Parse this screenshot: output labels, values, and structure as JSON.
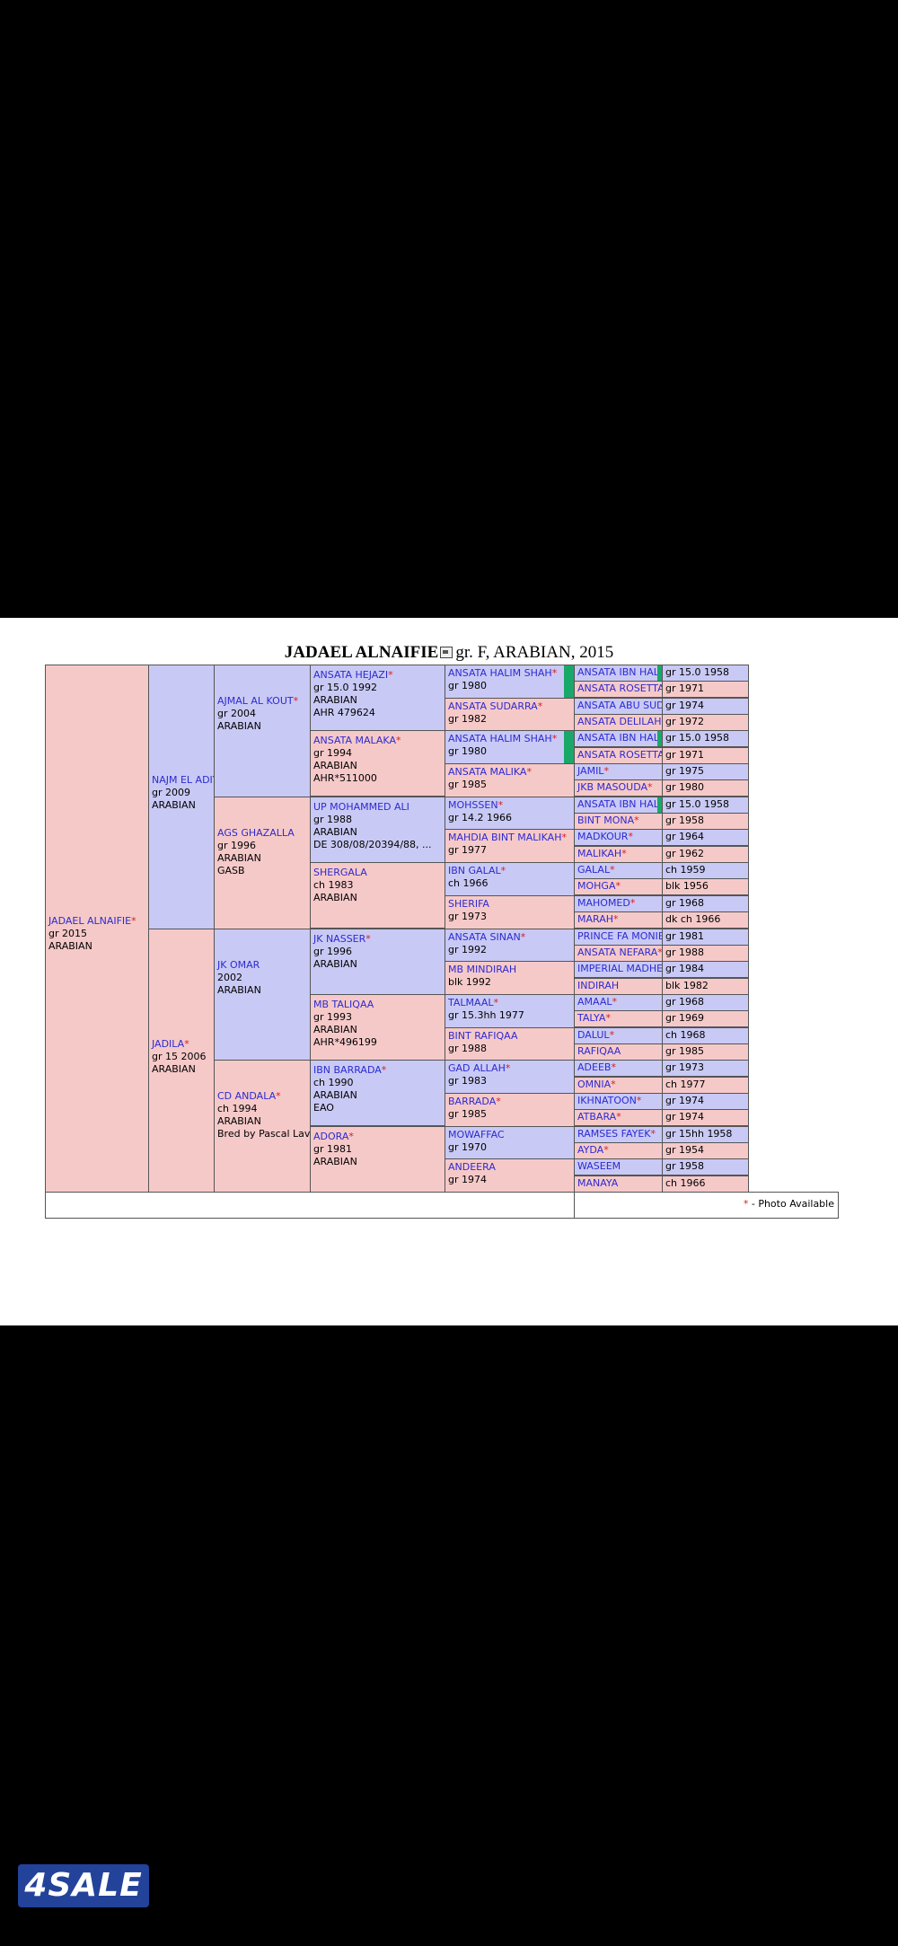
{
  "title": {
    "name": "JADAEL ALNAIFIE",
    "info": "gr. F, ARABIAN, 2015"
  },
  "legend": {
    "star": "*",
    "text": " - Photo Available"
  },
  "logo": "4SALE",
  "star": "*",
  "gen1": [
    {
      "name": "JADAEL ALNAIFIE",
      "star": true,
      "lines": [
        "gr 2015",
        "ARABIAN"
      ],
      "sex": "f"
    }
  ],
  "gen2": [
    {
      "name": "NAJM EL ADIYAT",
      "star": false,
      "lines": [
        "gr 2009",
        "ARABIAN"
      ],
      "sex": "m"
    },
    {
      "name": "JADILA",
      "star": true,
      "lines": [
        "gr 15 2006",
        "ARABIAN"
      ],
      "sex": "f"
    }
  ],
  "gen3": [
    {
      "name": "AJMAL AL KOUT",
      "star": true,
      "lines": [
        "gr 2004",
        "ARABIAN"
      ],
      "sex": "m"
    },
    {
      "name": "AGS GHAZALLA",
      "star": false,
      "lines": [
        "gr 1996",
        "ARABIAN",
        "GASB"
      ],
      "sex": "f"
    },
    {
      "name": "JK OMAR",
      "star": false,
      "lines": [
        "2002",
        "ARABIAN"
      ],
      "sex": "m"
    },
    {
      "name": "CD ANDALA",
      "star": true,
      "lines": [
        "ch 1994",
        "ARABIAN",
        "Bred by Pascal Lavrea..."
      ],
      "sex": "f"
    }
  ],
  "gen4": [
    {
      "name": "ANSATA HEJAZI",
      "star": true,
      "lines": [
        "gr 15.0 1992",
        "ARABIAN",
        "AHR 479624"
      ],
      "sex": "m"
    },
    {
      "name": "ANSATA MALAKA",
      "star": true,
      "lines": [
        "gr 1994",
        "ARABIAN",
        "AHR*511000"
      ],
      "sex": "f"
    },
    {
      "name": "UP MOHAMMED ALI",
      "star": false,
      "lines": [
        "gr 1988",
        "ARABIAN",
        "DE 308/08/20394/88, ..."
      ],
      "sex": "m"
    },
    {
      "name": "SHERGALA",
      "star": false,
      "lines": [
        "ch 1983",
        "ARABIAN"
      ],
      "sex": "f"
    },
    {
      "name": "JK NASSER",
      "star": true,
      "lines": [
        "gr 1996",
        "ARABIAN"
      ],
      "sex": "m"
    },
    {
      "name": "MB TALIQAA",
      "star": false,
      "lines": [
        "gr 1993",
        "ARABIAN",
        "AHR*496199"
      ],
      "sex": "f"
    },
    {
      "name": "IBN BARRADA",
      "star": true,
      "lines": [
        "ch 1990",
        "ARABIAN",
        "EAO"
      ],
      "sex": "m"
    },
    {
      "name": "ADORA",
      "star": true,
      "lines": [
        "gr 1981",
        "ARABIAN"
      ],
      "sex": "f"
    }
  ],
  "gen5": [
    {
      "name": "ANSATA HALIM SHAH",
      "star": true,
      "line": "gr 1980",
      "sex": "m",
      "bar": true
    },
    {
      "name": "ANSATA SUDARRA",
      "star": true,
      "line": "gr 1982",
      "sex": "f"
    },
    {
      "name": "ANSATA HALIM SHAH",
      "star": true,
      "line": "gr 1980",
      "sex": "m",
      "bar": true
    },
    {
      "name": "ANSATA MALIKA",
      "star": true,
      "line": "gr 1985",
      "sex": "f"
    },
    {
      "name": "MOHSSEN",
      "star": true,
      "line": "gr 14.2 1966",
      "sex": "m"
    },
    {
      "name": "MAHDIA BINT MALIKAH",
      "star": true,
      "line": "gr 1977",
      "sex": "f"
    },
    {
      "name": "IBN GALAL",
      "star": true,
      "line": "ch 1966",
      "sex": "m"
    },
    {
      "name": "SHERIFA",
      "star": false,
      "line": "gr 1973",
      "sex": "f"
    },
    {
      "name": "ANSATA SINAN",
      "star": true,
      "line": "gr 1992",
      "sex": "m"
    },
    {
      "name": "MB MINDIRAH",
      "star": false,
      "line": "blk 1992",
      "sex": "f"
    },
    {
      "name": "TALMAAL",
      "star": true,
      "line": "gr 15.3hh 1977",
      "sex": "m"
    },
    {
      "name": "BINT RAFIQAA",
      "star": false,
      "line": "gr 1988",
      "sex": "f"
    },
    {
      "name": "GAD ALLAH",
      "star": true,
      "line": "gr 1983",
      "sex": "m"
    },
    {
      "name": "BARRADA",
      "star": true,
      "line": "gr 1985",
      "sex": "f"
    },
    {
      "name": "MOWAFFAC",
      "star": false,
      "line": "gr 1970",
      "sex": "m"
    },
    {
      "name": "ANDEERA",
      "star": false,
      "line": "gr 1974",
      "sex": "f"
    }
  ],
  "gen6": [
    {
      "name": "ANSATA IBN HALIMA",
      "star": true,
      "info": "gr 15.0 1958",
      "sex": "m",
      "bar": true
    },
    {
      "name": "ANSATA ROSETTA",
      "star": true,
      "info": "gr 1971",
      "sex": "f"
    },
    {
      "name": "ANSATA ABU SUDAN",
      "star": true,
      "info": "gr 1974",
      "sex": "m"
    },
    {
      "name": "ANSATA DELILAH",
      "star": true,
      "info": "gr 1972",
      "sex": "f"
    },
    {
      "name": "ANSATA IBN HALIMA",
      "star": true,
      "info": "gr 15.0 1958",
      "sex": "m",
      "bar": true
    },
    {
      "name": "ANSATA ROSETTA",
      "star": true,
      "info": "gr 1971",
      "sex": "f"
    },
    {
      "name": "JAMIL",
      "star": true,
      "info": "gr 1975",
      "sex": "m"
    },
    {
      "name": "JKB MASOUDA",
      "star": true,
      "info": "gr 1980",
      "sex": "f"
    },
    {
      "name": "ANSATA IBN HALIMA",
      "star": true,
      "info": "gr 15.0 1958",
      "sex": "m",
      "bar": true
    },
    {
      "name": "BINT MONA",
      "star": true,
      "info": "gr 1958",
      "sex": "f"
    },
    {
      "name": "MADKOUR",
      "star": true,
      "info": "gr 1964",
      "sex": "m"
    },
    {
      "name": "MALIKAH",
      "star": true,
      "info": "gr 1962",
      "sex": "f"
    },
    {
      "name": "GALAL",
      "star": true,
      "info": "ch 1959",
      "sex": "m"
    },
    {
      "name": "MOHGA",
      "star": true,
      "info": "blk 1956",
      "sex": "f"
    },
    {
      "name": "MAHOMED",
      "star": true,
      "info": "gr 1968",
      "sex": "m"
    },
    {
      "name": "MARAH",
      "star": true,
      "info": "dk ch 1966",
      "sex": "f"
    },
    {
      "name": "PRINCE FA MONIET",
      "star": true,
      "info": "gr 1981",
      "sex": "m"
    },
    {
      "name": "ANSATA NEFARA",
      "star": true,
      "info": "gr 1988",
      "sex": "f"
    },
    {
      "name": "IMPERIAL MADHEEN",
      "star": true,
      "info": "gr 1984",
      "sex": "m"
    },
    {
      "name": "INDIRAH",
      "star": false,
      "info": "blk 1982",
      "sex": "f"
    },
    {
      "name": "AMAAL",
      "star": true,
      "info": "gr 1968",
      "sex": "m"
    },
    {
      "name": "TALYA",
      "star": true,
      "info": "gr 1969",
      "sex": "f"
    },
    {
      "name": "DALUL",
      "star": true,
      "info": "ch 1968",
      "sex": "m"
    },
    {
      "name": "RAFIQAA",
      "star": false,
      "info": "gr 1985",
      "sex": "f"
    },
    {
      "name": "ADEEB",
      "star": true,
      "info": "gr 1973",
      "sex": "m"
    },
    {
      "name": "OMNIA",
      "star": true,
      "info": "ch 1977",
      "sex": "f"
    },
    {
      "name": "IKHNATOON",
      "star": true,
      "info": "gr 1974",
      "sex": "m"
    },
    {
      "name": "ATBARA",
      "star": true,
      "info": "gr 1974",
      "sex": "f"
    },
    {
      "name": "RAMSES FAYEK",
      "star": true,
      "info": "gr 15hh 1958",
      "sex": "m"
    },
    {
      "name": "AYDA",
      "star": true,
      "info": "gr 1954",
      "sex": "f"
    },
    {
      "name": "WASEEM",
      "star": false,
      "info": "gr 1958",
      "sex": "m"
    },
    {
      "name": "MANAYA",
      "star": false,
      "info": "ch 1966",
      "sex": "f"
    }
  ]
}
